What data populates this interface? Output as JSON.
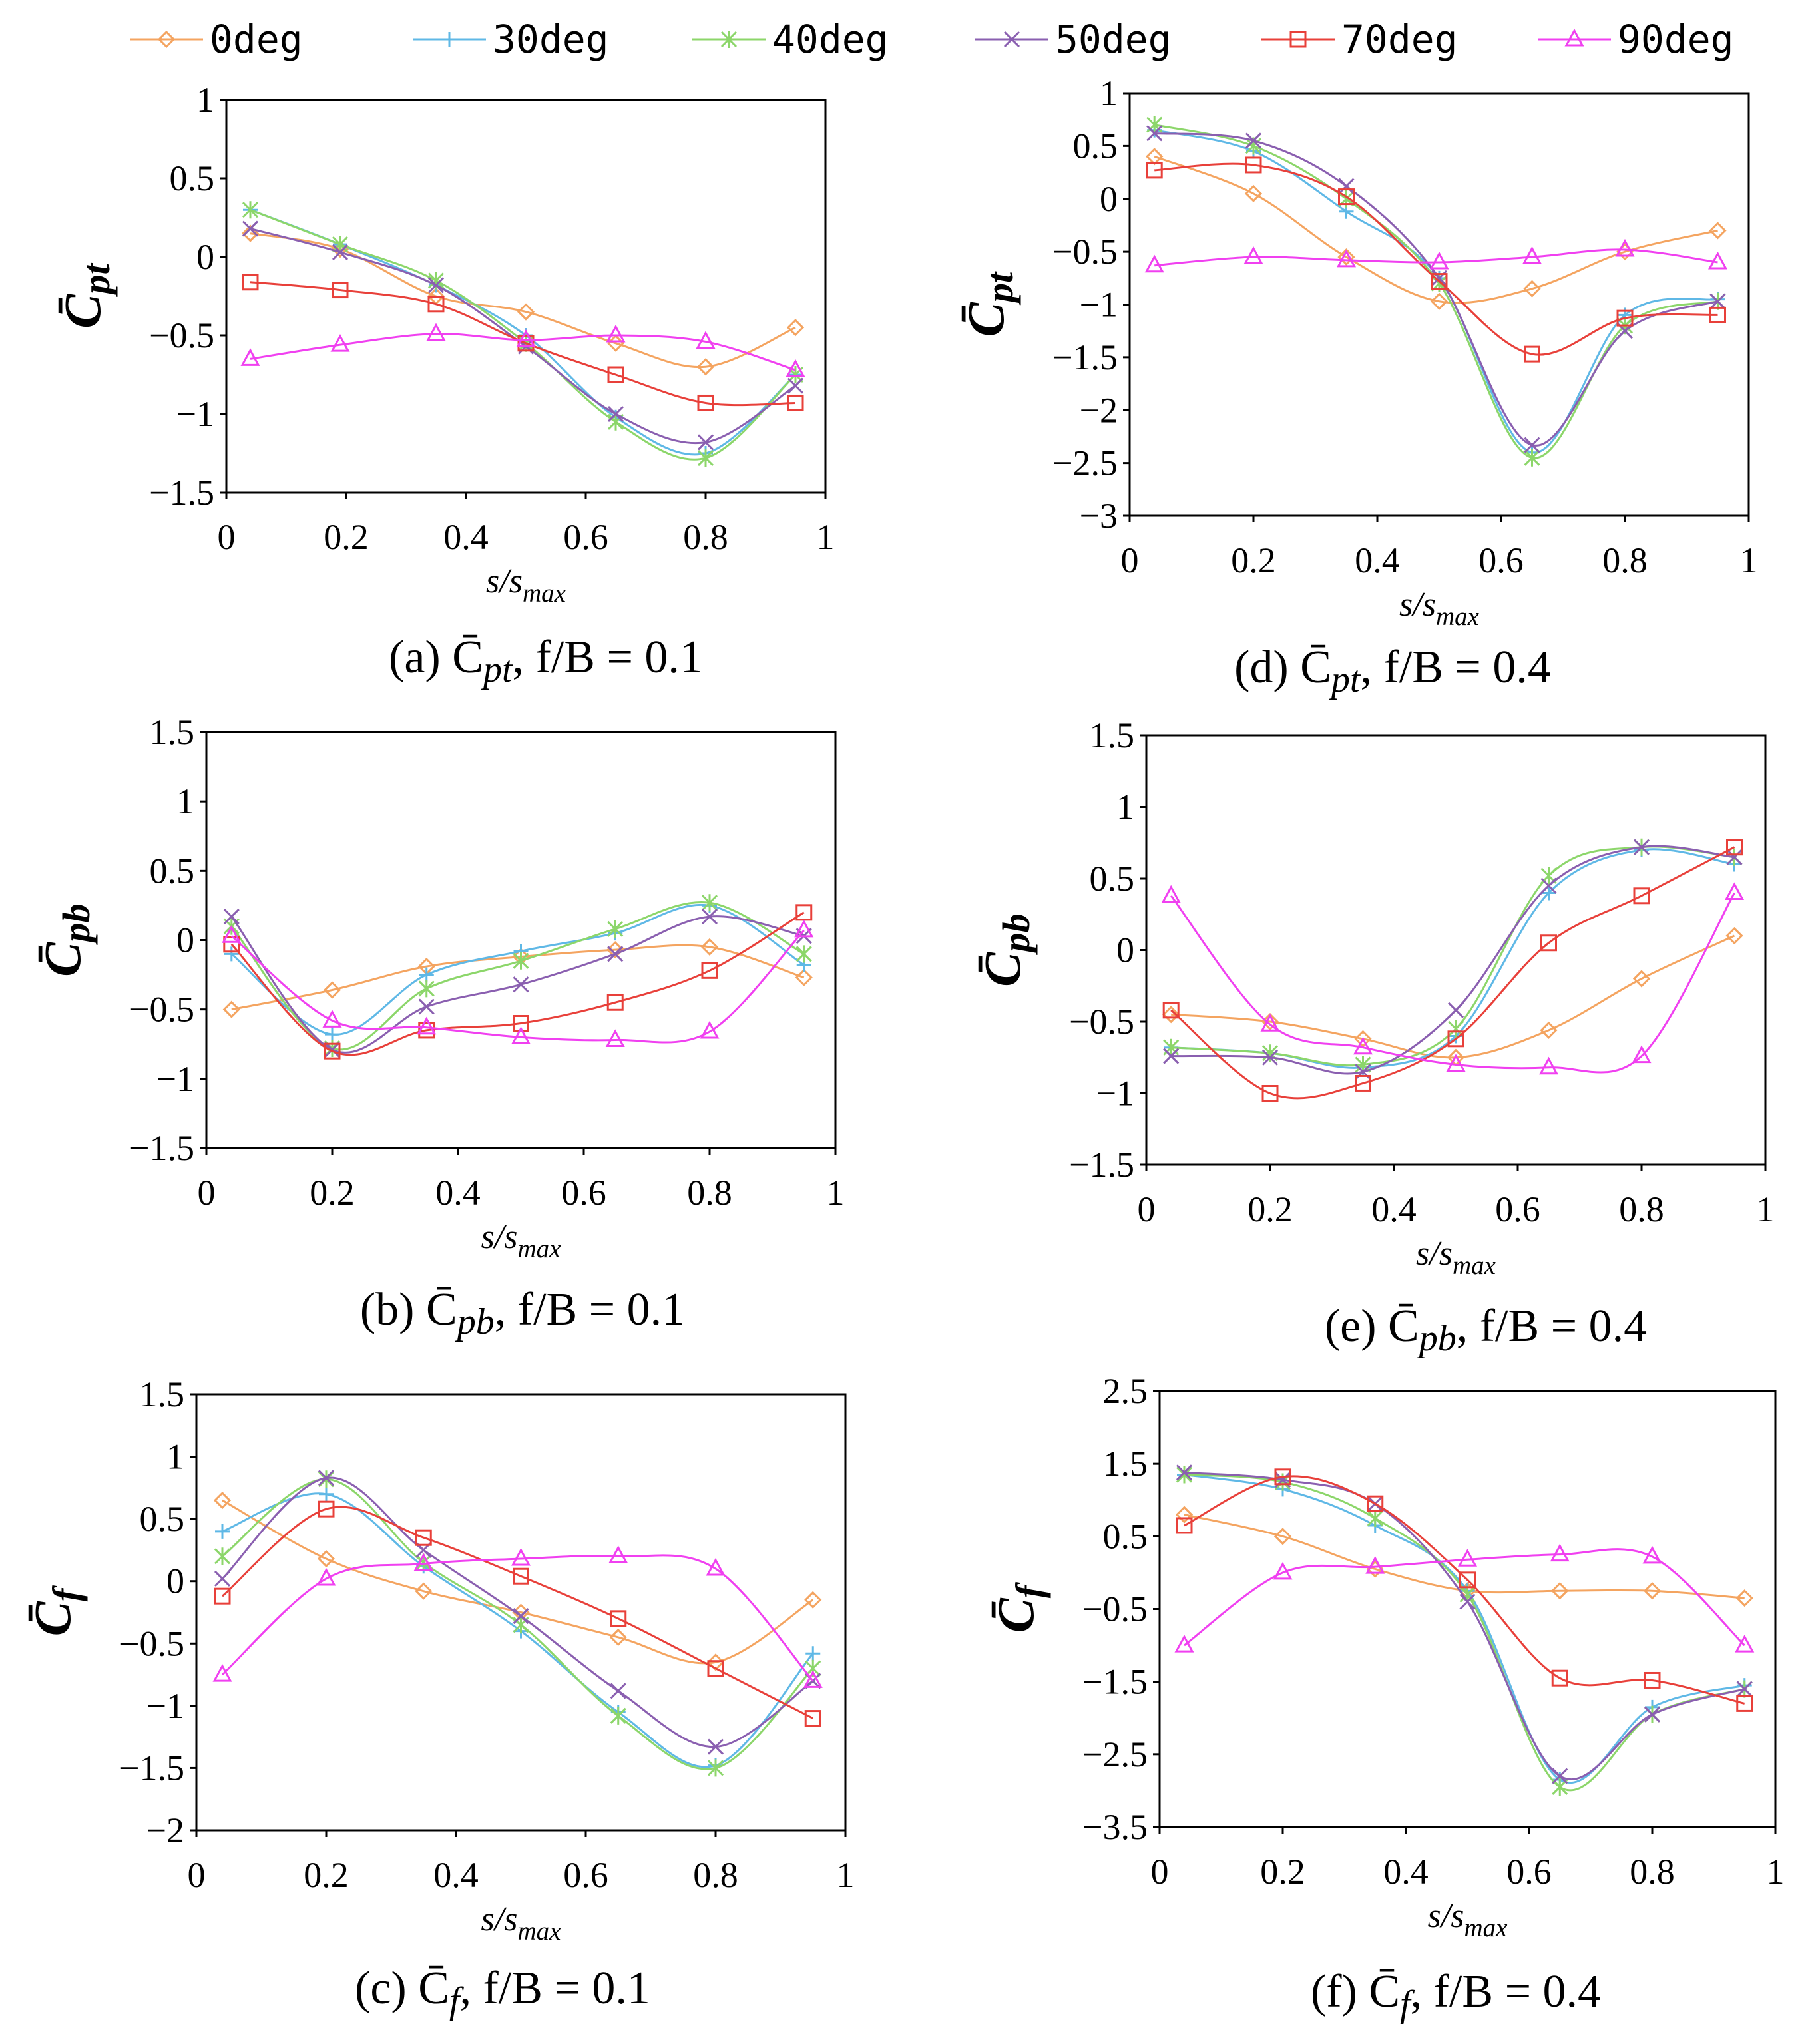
{
  "legend": [
    {
      "label": "0deg",
      "color": "#F4A460",
      "marker": "diamond"
    },
    {
      "label": "30deg",
      "color": "#5FB8E6",
      "marker": "plus"
    },
    {
      "label": "40deg",
      "color": "#8CD66A",
      "marker": "star"
    },
    {
      "label": "50deg",
      "color": "#8A5FB0",
      "marker": "cross"
    },
    {
      "label": "70deg",
      "color": "#E8403A",
      "marker": "square"
    },
    {
      "label": "90deg",
      "color": "#F040F0",
      "marker": "triangle"
    }
  ],
  "chart_data": [
    {
      "id": "a",
      "type": "line",
      "caption": "(a) C̄pt, f/B = 0.1",
      "ylabel": "C̄pt",
      "xlabel": "s/smax",
      "xlim": [
        0,
        1
      ],
      "ylim": [
        -1.5,
        1
      ],
      "xticks": [
        "0",
        "0.2",
        "0.4",
        "0.6",
        "0.8",
        "1"
      ],
      "yticks": [
        "1",
        "0.5",
        "0",
        "−0.5",
        "−1",
        "−1.5"
      ],
      "x": [
        0.04,
        0.19,
        0.35,
        0.5,
        0.65,
        0.8,
        0.95
      ],
      "series": [
        {
          "name": "0deg",
          "values": [
            0.15,
            0.05,
            -0.25,
            -0.35,
            -0.55,
            -0.7,
            -0.45
          ]
        },
        {
          "name": "30deg",
          "values": [
            0.3,
            0.08,
            -0.18,
            -0.5,
            -1.02,
            -1.25,
            -0.75
          ]
        },
        {
          "name": "40deg",
          "values": [
            0.3,
            0.08,
            -0.15,
            -0.55,
            -1.05,
            -1.28,
            -0.75
          ]
        },
        {
          "name": "50deg",
          "values": [
            0.18,
            0.03,
            -0.18,
            -0.57,
            -1.0,
            -1.18,
            -0.82
          ]
        },
        {
          "name": "70deg",
          "values": [
            -0.16,
            -0.21,
            -0.3,
            -0.55,
            -0.75,
            -0.93,
            -0.93
          ]
        },
        {
          "name": "90deg",
          "values": [
            -0.65,
            -0.56,
            -0.49,
            -0.53,
            -0.5,
            -0.54,
            -0.72
          ]
        }
      ]
    },
    {
      "id": "d",
      "type": "line",
      "caption": "(d) C̄pt, f/B = 0.4",
      "ylabel": "C̄pt",
      "xlabel": "s/smax",
      "xlim": [
        0,
        1
      ],
      "ylim": [
        -3,
        1
      ],
      "xticks": [
        "0",
        "0.2",
        "0.4",
        "0.6",
        "0.8",
        "1"
      ],
      "yticks": [
        "1",
        "0.5",
        "0",
        "−0.5",
        "−1",
        "−1.5",
        "−2",
        "−2.5",
        "−3"
      ],
      "x": [
        0.04,
        0.2,
        0.35,
        0.5,
        0.65,
        0.8,
        0.95
      ],
      "series": [
        {
          "name": "0deg",
          "values": [
            0.4,
            0.05,
            -0.55,
            -0.97,
            -0.85,
            -0.5,
            -0.3
          ]
        },
        {
          "name": "30deg",
          "values": [
            0.65,
            0.45,
            -0.12,
            -0.75,
            -2.4,
            -1.1,
            -0.95
          ]
        },
        {
          "name": "40deg",
          "values": [
            0.7,
            0.5,
            0.0,
            -0.8,
            -2.45,
            -1.2,
            -0.97
          ]
        },
        {
          "name": "50deg",
          "values": [
            0.62,
            0.55,
            0.12,
            -0.75,
            -2.33,
            -1.25,
            -0.97
          ]
        },
        {
          "name": "70deg",
          "values": [
            0.27,
            0.32,
            0.02,
            -0.78,
            -1.47,
            -1.13,
            -1.1
          ]
        },
        {
          "name": "90deg",
          "values": [
            -0.63,
            -0.55,
            -0.58,
            -0.6,
            -0.55,
            -0.48,
            -0.6
          ]
        }
      ]
    },
    {
      "id": "b",
      "type": "line",
      "caption": "(b) C̄pb, f/B = 0.1",
      "ylabel": "C̄pb",
      "xlabel": "s/smax",
      "xlim": [
        0,
        1
      ],
      "ylim": [
        -1.5,
        1.5
      ],
      "xticks": [
        "0",
        "0.2",
        "0.4",
        "0.6",
        "0.8",
        "1"
      ],
      "yticks": [
        "1.5",
        "1",
        "0.5",
        "0",
        "−0.5",
        "−1",
        "−1.5"
      ],
      "x": [
        0.04,
        0.2,
        0.35,
        0.5,
        0.65,
        0.8,
        0.95
      ],
      "series": [
        {
          "name": "0deg",
          "values": [
            -0.5,
            -0.36,
            -0.19,
            -0.12,
            -0.07,
            -0.05,
            -0.27
          ]
        },
        {
          "name": "30deg",
          "values": [
            -0.1,
            -0.68,
            -0.25,
            -0.08,
            0.05,
            0.25,
            -0.18
          ]
        },
        {
          "name": "40deg",
          "values": [
            0.1,
            -0.78,
            -0.35,
            -0.15,
            0.08,
            0.27,
            -0.1
          ]
        },
        {
          "name": "50deg",
          "values": [
            0.17,
            -0.79,
            -0.48,
            -0.32,
            -0.1,
            0.17,
            0.03
          ]
        },
        {
          "name": "70deg",
          "values": [
            -0.03,
            -0.8,
            -0.65,
            -0.6,
            -0.45,
            -0.22,
            0.2
          ]
        },
        {
          "name": "90deg",
          "values": [
            0.03,
            -0.58,
            -0.63,
            -0.7,
            -0.72,
            -0.66,
            0.07
          ]
        }
      ]
    },
    {
      "id": "e",
      "type": "line",
      "caption": "(e) C̄pb, f/B = 0.4",
      "ylabel": "C̄pb",
      "xlabel": "s/smax",
      "xlim": [
        0,
        1
      ],
      "ylim": [
        -1.5,
        1.5
      ],
      "xticks": [
        "0",
        "0.2",
        "0.4",
        "0.6",
        "0.8",
        "1"
      ],
      "yticks": [
        "1.5",
        "1",
        "0.5",
        "0",
        "−0.5",
        "−1",
        "−1.5"
      ],
      "x": [
        0.04,
        0.2,
        0.35,
        0.5,
        0.65,
        0.8,
        0.95
      ],
      "series": [
        {
          "name": "0deg",
          "values": [
            -0.45,
            -0.5,
            -0.62,
            -0.75,
            -0.56,
            -0.2,
            0.1
          ]
        },
        {
          "name": "30deg",
          "values": [
            -0.68,
            -0.72,
            -0.82,
            -0.6,
            0.4,
            0.7,
            0.6
          ]
        },
        {
          "name": "40deg",
          "values": [
            -0.68,
            -0.72,
            -0.8,
            -0.55,
            0.52,
            0.72,
            0.65
          ]
        },
        {
          "name": "50deg",
          "values": [
            -0.74,
            -0.75,
            -0.85,
            -0.42,
            0.45,
            0.72,
            0.65
          ]
        },
        {
          "name": "70deg",
          "values": [
            -0.42,
            -1.0,
            -0.93,
            -0.62,
            0.05,
            0.38,
            0.72
          ]
        },
        {
          "name": "90deg",
          "values": [
            0.38,
            -0.52,
            -0.68,
            -0.8,
            -0.82,
            -0.74,
            0.4
          ]
        }
      ]
    },
    {
      "id": "c",
      "type": "line",
      "caption": "(c) C̄f, f/B = 0.1",
      "ylabel": "C̄f",
      "xlabel": "s/smax",
      "xlim": [
        0,
        1
      ],
      "ylim": [
        -2,
        1.5
      ],
      "xticks": [
        "0",
        "0.2",
        "0.4",
        "0.6",
        "0.8",
        "1"
      ],
      "yticks": [
        "1.5",
        "1",
        "0.5",
        "0",
        "−0.5",
        "−1",
        "−1.5",
        "−2"
      ],
      "x": [
        0.04,
        0.2,
        0.35,
        0.5,
        0.65,
        0.8,
        0.95
      ],
      "series": [
        {
          "name": "0deg",
          "values": [
            0.65,
            0.18,
            -0.08,
            -0.25,
            -0.45,
            -0.65,
            -0.15
          ]
        },
        {
          "name": "30deg",
          "values": [
            0.4,
            0.7,
            0.12,
            -0.4,
            -1.05,
            -1.48,
            -0.58
          ]
        },
        {
          "name": "40deg",
          "values": [
            0.2,
            0.82,
            0.15,
            -0.35,
            -1.08,
            -1.5,
            -0.7
          ]
        },
        {
          "name": "50deg",
          "values": [
            0.02,
            0.83,
            0.25,
            -0.28,
            -0.88,
            -1.33,
            -0.8
          ]
        },
        {
          "name": "70deg",
          "values": [
            -0.12,
            0.58,
            0.35,
            0.04,
            -0.3,
            -0.7,
            -1.1
          ]
        },
        {
          "name": "90deg",
          "values": [
            -0.75,
            0.02,
            0.14,
            0.18,
            0.2,
            0.1,
            -0.8
          ]
        }
      ]
    },
    {
      "id": "f",
      "type": "line",
      "caption": "(f) C̄f, f/B = 0.4",
      "ylabel": "C̄f",
      "xlabel": "s/smax",
      "xlim": [
        0,
        1
      ],
      "ylim": [
        -3.5,
        2.5
      ],
      "xticks": [
        "0",
        "0.2",
        "0.4",
        "0.6",
        "0.8",
        "1"
      ],
      "yticks": [
        "2.5",
        "1.5",
        "0.5",
        "−0.5",
        "−1.5",
        "−2.5",
        "−3.5"
      ],
      "x": [
        0.04,
        0.2,
        0.35,
        0.5,
        0.65,
        0.8,
        0.95
      ],
      "series": [
        {
          "name": "0deg",
          "values": [
            0.8,
            0.5,
            0.05,
            -0.25,
            -0.25,
            -0.25,
            -0.35
          ]
        },
        {
          "name": "30deg",
          "values": [
            1.35,
            1.15,
            0.65,
            -0.25,
            -2.85,
            -1.85,
            -1.55
          ]
        },
        {
          "name": "40deg",
          "values": [
            1.35,
            1.25,
            0.75,
            -0.3,
            -2.95,
            -1.95,
            -1.6
          ]
        },
        {
          "name": "50deg",
          "values": [
            1.38,
            1.28,
            0.95,
            -0.4,
            -2.8,
            -1.95,
            -1.6
          ]
        },
        {
          "name": "70deg",
          "values": [
            0.65,
            1.32,
            0.95,
            -0.1,
            -1.45,
            -1.48,
            -1.8
          ]
        },
        {
          "name": "90deg",
          "values": [
            -1.0,
            0.0,
            0.08,
            0.18,
            0.25,
            0.22,
            -1.0
          ]
        }
      ]
    }
  ]
}
